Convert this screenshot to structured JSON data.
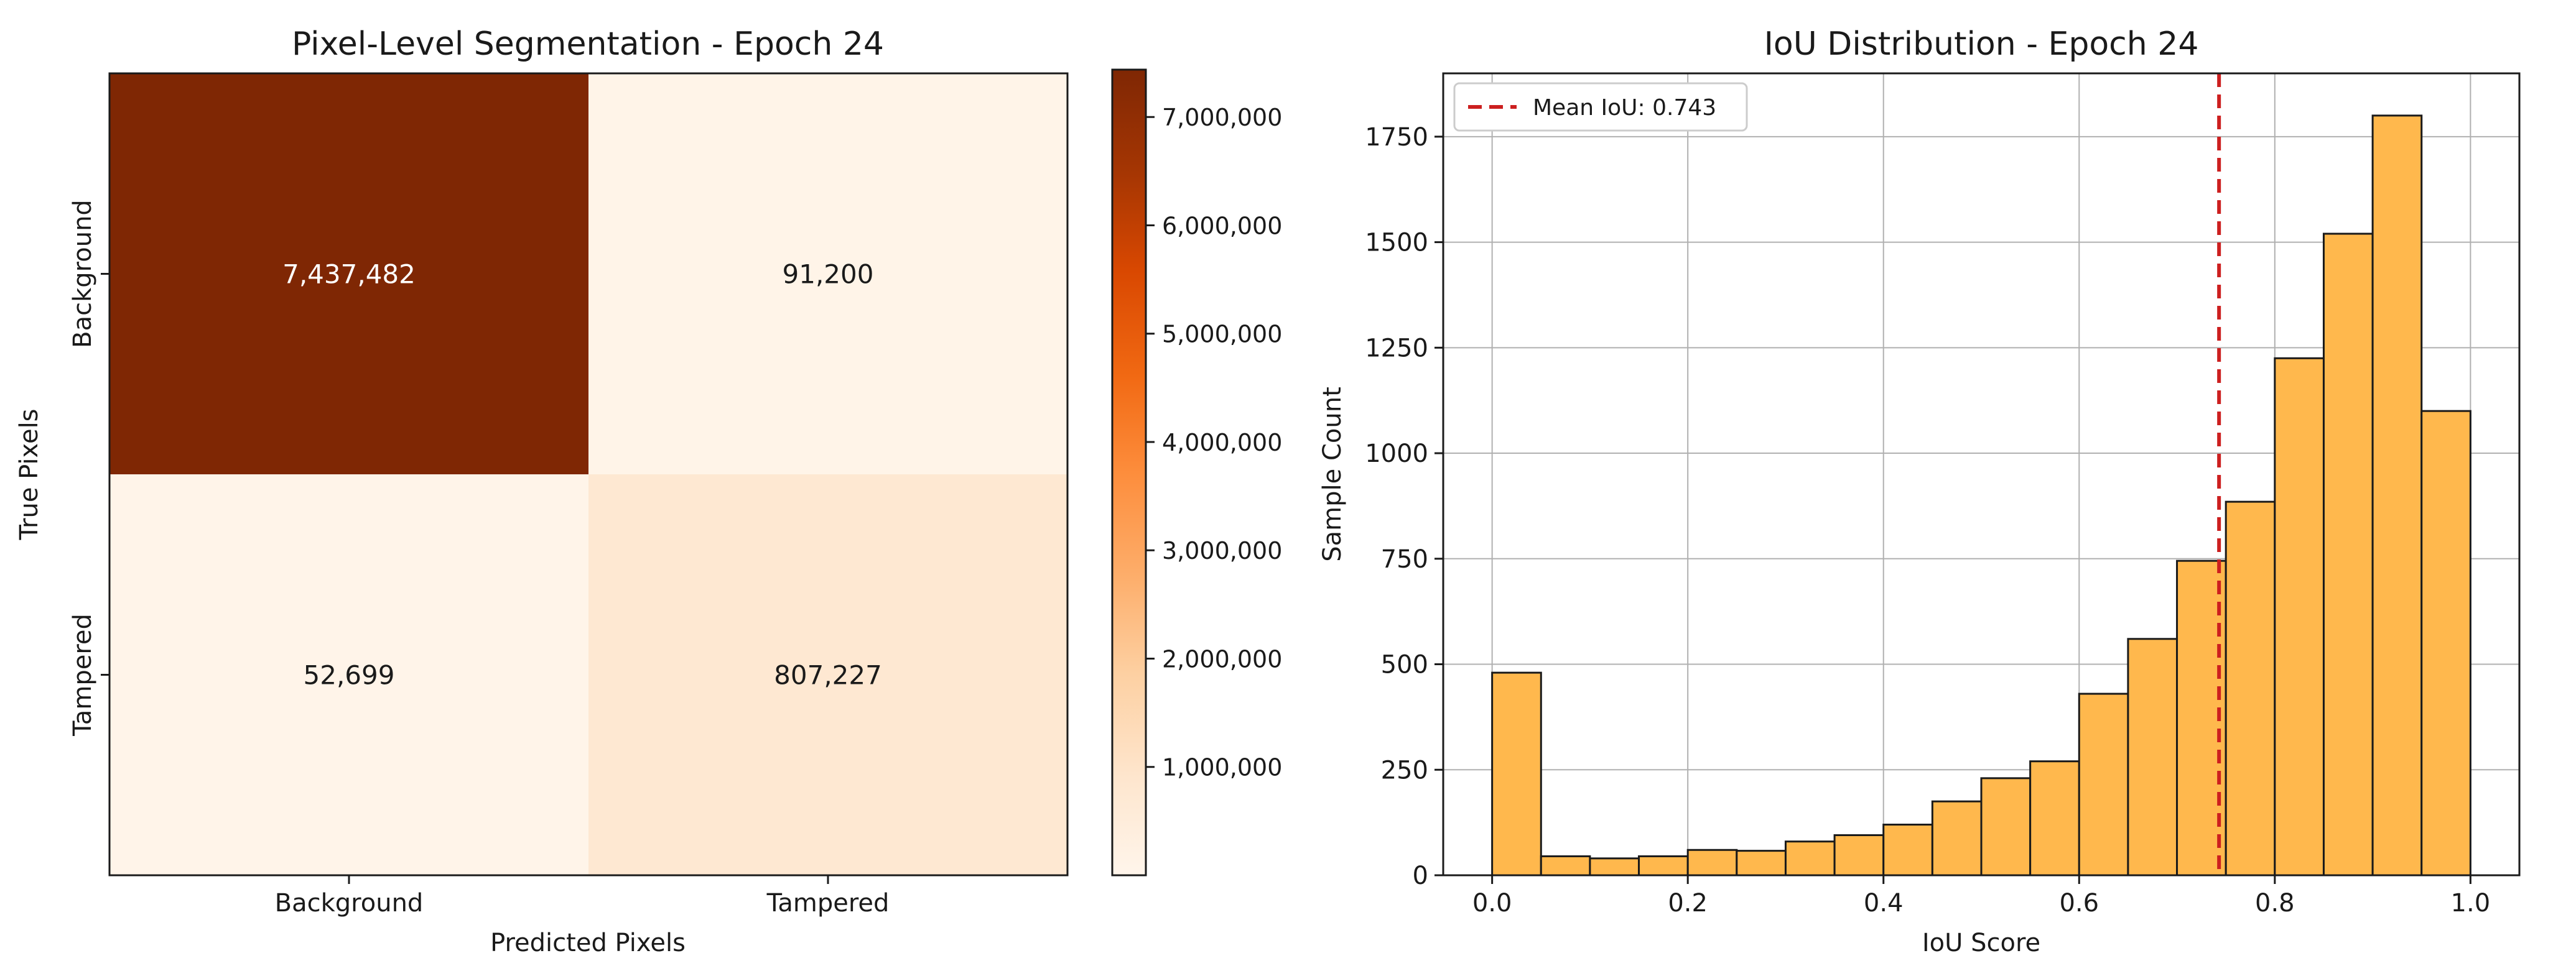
{
  "chart_data": [
    {
      "type": "heatmap",
      "title": "Pixel-Level Segmentation - Epoch 24",
      "xlabel": "Predicted Pixels",
      "ylabel": "True Pixels",
      "x_categories": [
        "Background",
        "Tampered"
      ],
      "y_categories": [
        "Background",
        "Tampered"
      ],
      "values": [
        [
          7437482,
          91200
        ],
        [
          52699,
          807227
        ]
      ],
      "cell_labels": [
        [
          "7,437,482",
          "91,200"
        ],
        [
          "52,699",
          "807,227"
        ]
      ],
      "colormap": "Oranges",
      "colorbar": {
        "range": [
          0,
          7437482
        ],
        "ticks": [
          1000000,
          2000000,
          3000000,
          4000000,
          5000000,
          6000000,
          7000000
        ],
        "tick_labels": [
          "1,000,000",
          "2,000,000",
          "3,000,000",
          "4,000,000",
          "5,000,000",
          "6,000,000",
          "7,000,000"
        ]
      }
    },
    {
      "type": "bar",
      "subtype": "histogram",
      "title": "IoU Distribution - Epoch 24",
      "xlabel": "IoU Score",
      "ylabel": "Sample Count",
      "bin_edges": [
        0.0,
        0.05,
        0.1,
        0.15,
        0.2,
        0.25,
        0.3,
        0.35,
        0.4,
        0.45,
        0.5,
        0.55,
        0.6,
        0.65,
        0.7,
        0.75,
        0.8,
        0.85,
        0.9,
        0.95,
        1.0
      ],
      "counts": [
        480,
        45,
        40,
        45,
        60,
        58,
        80,
        95,
        120,
        175,
        230,
        270,
        430,
        560,
        745,
        885,
        1225,
        1520,
        1800,
        1100
      ],
      "xlim": [
        -0.05,
        1.05
      ],
      "ylim": [
        0,
        1900
      ],
      "x_ticks": [
        0.0,
        0.2,
        0.4,
        0.6,
        0.8,
        1.0
      ],
      "x_tick_labels": [
        "0.0",
        "0.2",
        "0.4",
        "0.6",
        "0.8",
        "1.0"
      ],
      "y_ticks": [
        0,
        250,
        500,
        750,
        1000,
        1250,
        1500,
        1750
      ],
      "y_tick_labels": [
        "0",
        "250",
        "500",
        "750",
        "1000",
        "1250",
        "1500",
        "1750"
      ],
      "grid": true,
      "bar_color": "#ffb84d",
      "bar_edge_color": "#1a1a1a",
      "mean_line": {
        "value": 0.743,
        "color": "#cc1f1f"
      },
      "legend": {
        "position": "top-left",
        "entries": [
          "Mean IoU: 0.743"
        ]
      }
    }
  ]
}
